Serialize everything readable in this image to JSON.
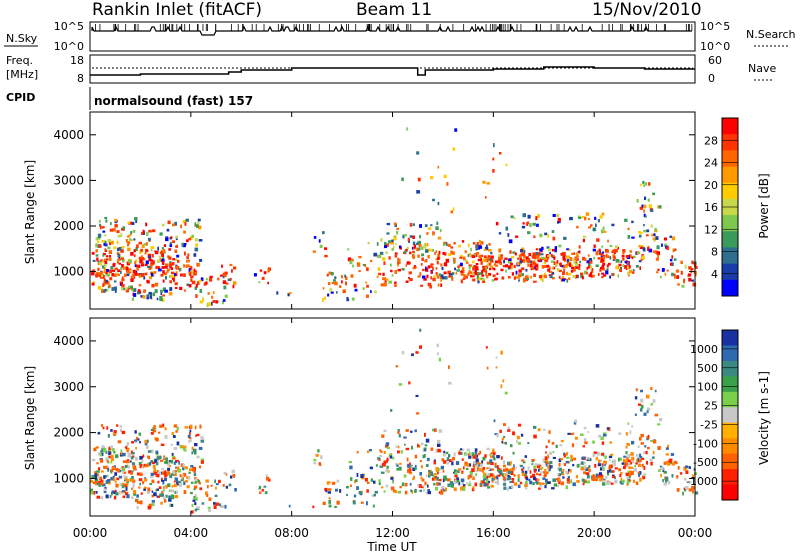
{
  "header": {
    "station": "Rankin Inlet (fitACF)",
    "beam": "Beam 11",
    "date": "15/Nov/2010"
  },
  "summary": {
    "nsky_label": "N.Sky",
    "nsearch_label": "N.Search",
    "freq_label_1": "Freq.",
    "freq_label_2": "[MHz]",
    "nave_label": "Nave",
    "cpid_label": "CPID",
    "cpid_text": "normalsound (fast) 157",
    "nsky_ticks": [
      "10^5",
      "10^0"
    ],
    "freq_ticks": [
      "18",
      "8"
    ],
    "nave_ticks": [
      "60",
      "0"
    ]
  },
  "x_axis": {
    "label": "Time UT",
    "ticks": [
      "00:00",
      "04:00",
      "08:00",
      "12:00",
      "16:00",
      "20:00",
      "00:00"
    ]
  },
  "power_panel": {
    "ylabel": "Slant Range [km]",
    "yticks": [
      "4000",
      "3000",
      "2000",
      "1000"
    ],
    "colorbar_label": "Power [dB]",
    "colorbar_ticks": [
      "28",
      "24",
      "20",
      "16",
      "12",
      "8",
      "4"
    ],
    "colors": [
      "#ff0000",
      "#ff3300",
      "#ff6600",
      "#ff9900",
      "#ffcc00",
      "#c8d84a",
      "#7ec850",
      "#3a9a5a",
      "#2e6e8e",
      "#1a3ca8",
      "#0000ff"
    ]
  },
  "velocity_panel": {
    "ylabel": "Slant Range [km]",
    "yticks": [
      "4000",
      "3000",
      "2000",
      "1000"
    ],
    "colorbar_label": "Velocity [m s-1]",
    "colorbar_ticks": [
      "1000",
      "500",
      "100",
      "25",
      "-25",
      "-100",
      "-500",
      "-1000"
    ],
    "colors": [
      "#1a2fa0",
      "#2f6ab0",
      "#3a8a80",
      "#3aa04a",
      "#7ad04a",
      "#c8c8c8",
      "#ffb000",
      "#ff8c00",
      "#ff6000",
      "#ff2000",
      "#ff0000"
    ]
  },
  "chart_data": {
    "type": "heatmap",
    "x": [
      "00:00",
      "04:00",
      "08:00",
      "12:00",
      "16:00",
      "20:00",
      "00:00"
    ],
    "xlabel": "Time UT",
    "ylabel": "Slant Range [km]",
    "ylim": [
      180,
      4500
    ],
    "series": [
      {
        "name": "Power [dB]",
        "range": [
          3,
          30
        ]
      },
      {
        "name": "Velocity [m s-1]",
        "range": [
          -1000,
          1000
        ]
      }
    ]
  }
}
